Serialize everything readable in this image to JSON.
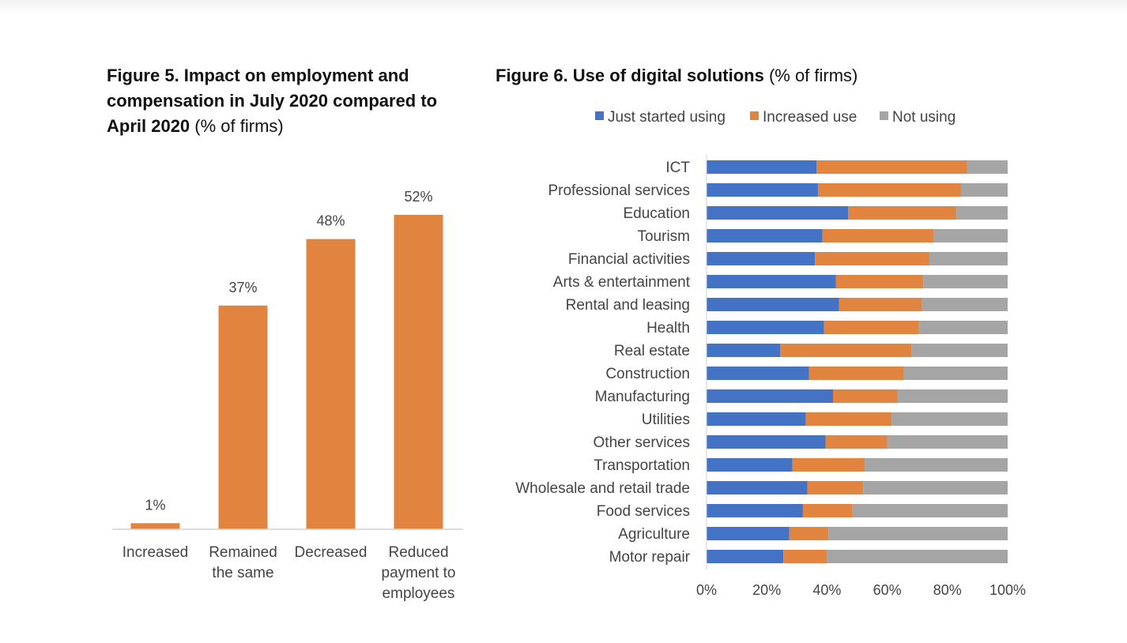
{
  "figure5": {
    "title_bold": "Figure 5. Impact on employment and compensation in July 2020 compared to April 2020",
    "title_unit": "(% of firms)"
  },
  "figure6": {
    "title_bold": "Figure 6. Use of digital solutions",
    "title_unit": "(% of firms)"
  },
  "colors": {
    "orange": "#E0843F",
    "blue": "#4472C4",
    "gray": "#A5A5A5",
    "axis": "#D0D0D0",
    "text": "#444444"
  },
  "chart_data": [
    {
      "type": "bar",
      "categories": [
        [
          "Increased"
        ],
        [
          "Remained",
          "the same"
        ],
        [
          "Decreased"
        ],
        [
          "Reduced",
          "payment to",
          "employees"
        ]
      ],
      "values": [
        1,
        37,
        48,
        52
      ],
      "data_labels": [
        "1%",
        "37%",
        "48%",
        "52%"
      ],
      "ylim": [
        0,
        52
      ],
      "grid": false,
      "legend": "none"
    },
    {
      "type": "bar",
      "orientation": "horizontal",
      "stacked": true,
      "categories": [
        "ICT",
        "Professional services",
        "Education",
        "Tourism",
        "Financial activities",
        "Arts & entertainment",
        "Rental and leasing",
        "Health",
        "Real estate",
        "Construction",
        "Manufacturing",
        "Utilities",
        "Other services",
        "Transportation",
        "Wholesale and retail trade",
        "Food services",
        "Agriculture",
        "Motor repair"
      ],
      "series": [
        {
          "name": "Just started using",
          "color": "#4472C4",
          "values": [
            36.5,
            37,
            47,
            38.5,
            36,
            43,
            44,
            39,
            24.5,
            34,
            42,
            33,
            39.5,
            28.5,
            33.5,
            32,
            27.5,
            25.5
          ]
        },
        {
          "name": "Increased use",
          "color": "#E0843F",
          "values": [
            50,
            47.5,
            36,
            37,
            38,
            29,
            27.5,
            31.5,
            43.5,
            31.5,
            21.5,
            28.5,
            20.5,
            24,
            18.5,
            16.5,
            13,
            14.5
          ]
        },
        {
          "name": "Not using",
          "color": "#A5A5A5",
          "values": [
            13.5,
            15.5,
            17,
            24.5,
            26,
            28,
            28.5,
            29.5,
            32,
            34.5,
            36.5,
            38.5,
            40,
            47.5,
            48,
            51.5,
            59.5,
            60
          ]
        }
      ],
      "xlim": [
        0,
        100
      ],
      "xticks": [
        "0%",
        "20%",
        "40%",
        "60%",
        "80%",
        "100%"
      ],
      "grid": false,
      "legend": "top"
    }
  ]
}
